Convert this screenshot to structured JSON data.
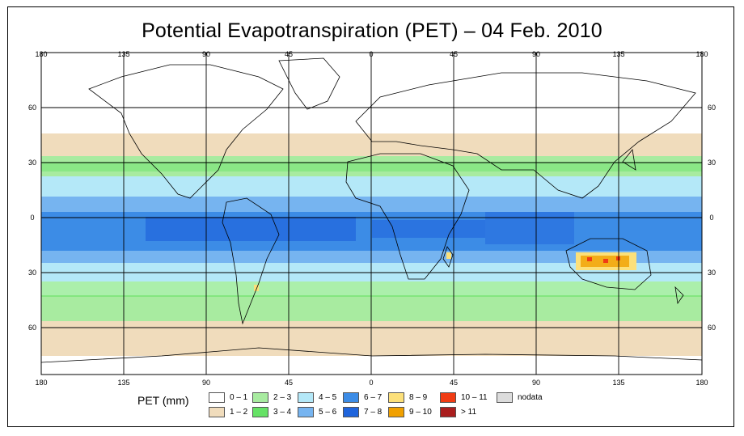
{
  "title": "Potential Evapotranspiration (PET) – 04 Feb. 2010",
  "lon_ticks": [
    "180",
    "135",
    "90",
    "45",
    "0",
    "45",
    "90",
    "135",
    "180"
  ],
  "lat_ticks": [
    "60",
    "30",
    "0",
    "30",
    "60"
  ],
  "legend": {
    "title": "PET (mm)",
    "items": [
      {
        "label": "0 – 1",
        "color": "#ffffff"
      },
      {
        "label": "1 – 2",
        "color": "#f0dcbc"
      },
      {
        "label": "2 – 3",
        "color": "#a8eba0"
      },
      {
        "label": "3 – 4",
        "color": "#66e266"
      },
      {
        "label": "4 – 5",
        "color": "#b4e8f8"
      },
      {
        "label": "5 – 6",
        "color": "#76b4f0"
      },
      {
        "label": "6 – 7",
        "color": "#3c8ce6"
      },
      {
        "label": "7 – 8",
        "color": "#1f64dc"
      },
      {
        "label": "8 – 9",
        "color": "#fce07a"
      },
      {
        "label": "9 – 10",
        "color": "#f0a000"
      },
      {
        "label": "10 – 11",
        "color": "#f03c14"
      },
      {
        "label": "> 11",
        "color": "#aa1e1e"
      },
      {
        "label": "nodata",
        "color": "#dcdcdc"
      }
    ]
  }
}
